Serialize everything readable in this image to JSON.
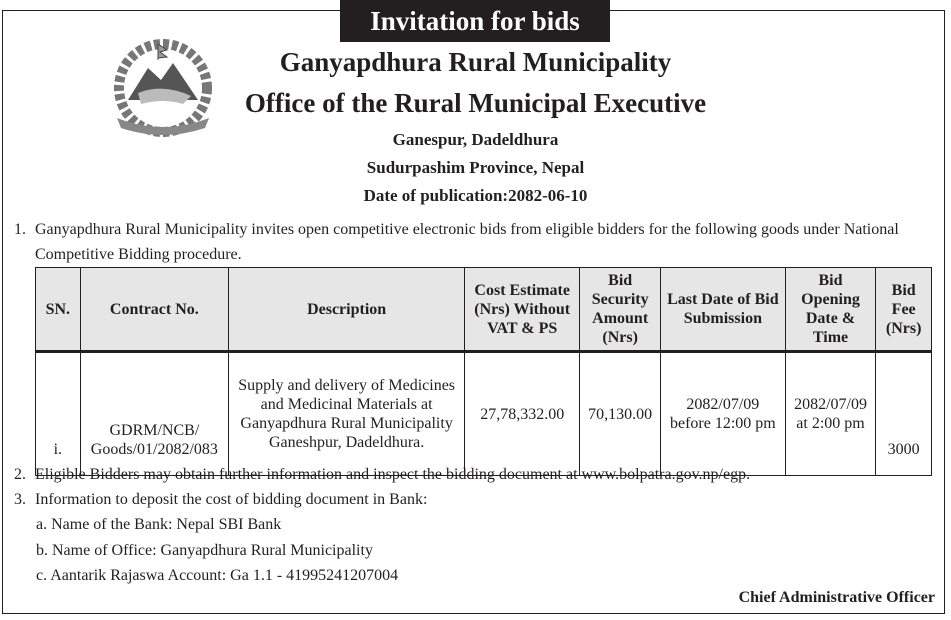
{
  "title": "Invitation for bids",
  "header": {
    "org": "Ganyapdhura Rural Municipality",
    "office": "Office of the Rural Municipal Executive",
    "address1": "Ganespur, Dadeldhura",
    "address2": "Sudurpashim Province, Nepal",
    "publication": "Date of publication:2082-06-10"
  },
  "paragraphs": {
    "p1_num": "1.",
    "p1": "Ganyapdhura Rural Municipality invites open competitive electronic bids from eligible bidders for the following goods under National Competitive Bidding procedure.",
    "p2_num": "2.",
    "p2": "Eligible Bidders may obtain further information and inspect the bidding document at www.bolpatra.gov.np/egp.",
    "p3_num": "3.",
    "p3": "Information to deposit the cost of bidding document in Bank:",
    "a": "a. Name of the Bank: Nepal SBI Bank",
    "b": "b. Name of Office: Ganyapdhura Rural Municipality",
    "c": "c.  Aantarik Rajaswa Account: Ga 1.1 - 41995241207004"
  },
  "table": {
    "headers": [
      "SN.",
      "Contract No.",
      "Description",
      "Cost Estimate (Nrs) Without VAT & PS",
      "Bid Security Amount (Nrs)",
      "Last Date of Bid Submission",
      "Bid Opening Date & Time",
      "Bid Fee (Nrs)"
    ],
    "rows": [
      [
        "i.",
        "GDRM/NCB/ Goods/01/2082/083",
        "Supply and delivery  of Medicines and Medicinal Materials at Ganyapdhura Rural Municipality Ganeshpur, Dadeldhura.",
        "27,78,332.00",
        "70,130.00",
        "2082/07/09 before 12:00 pm",
        "2082/07/09 at 2:00 pm",
        "3000"
      ]
    ]
  },
  "signature": "Chief Administrative Officer",
  "logo_icon": "nepal-emblem-logo"
}
